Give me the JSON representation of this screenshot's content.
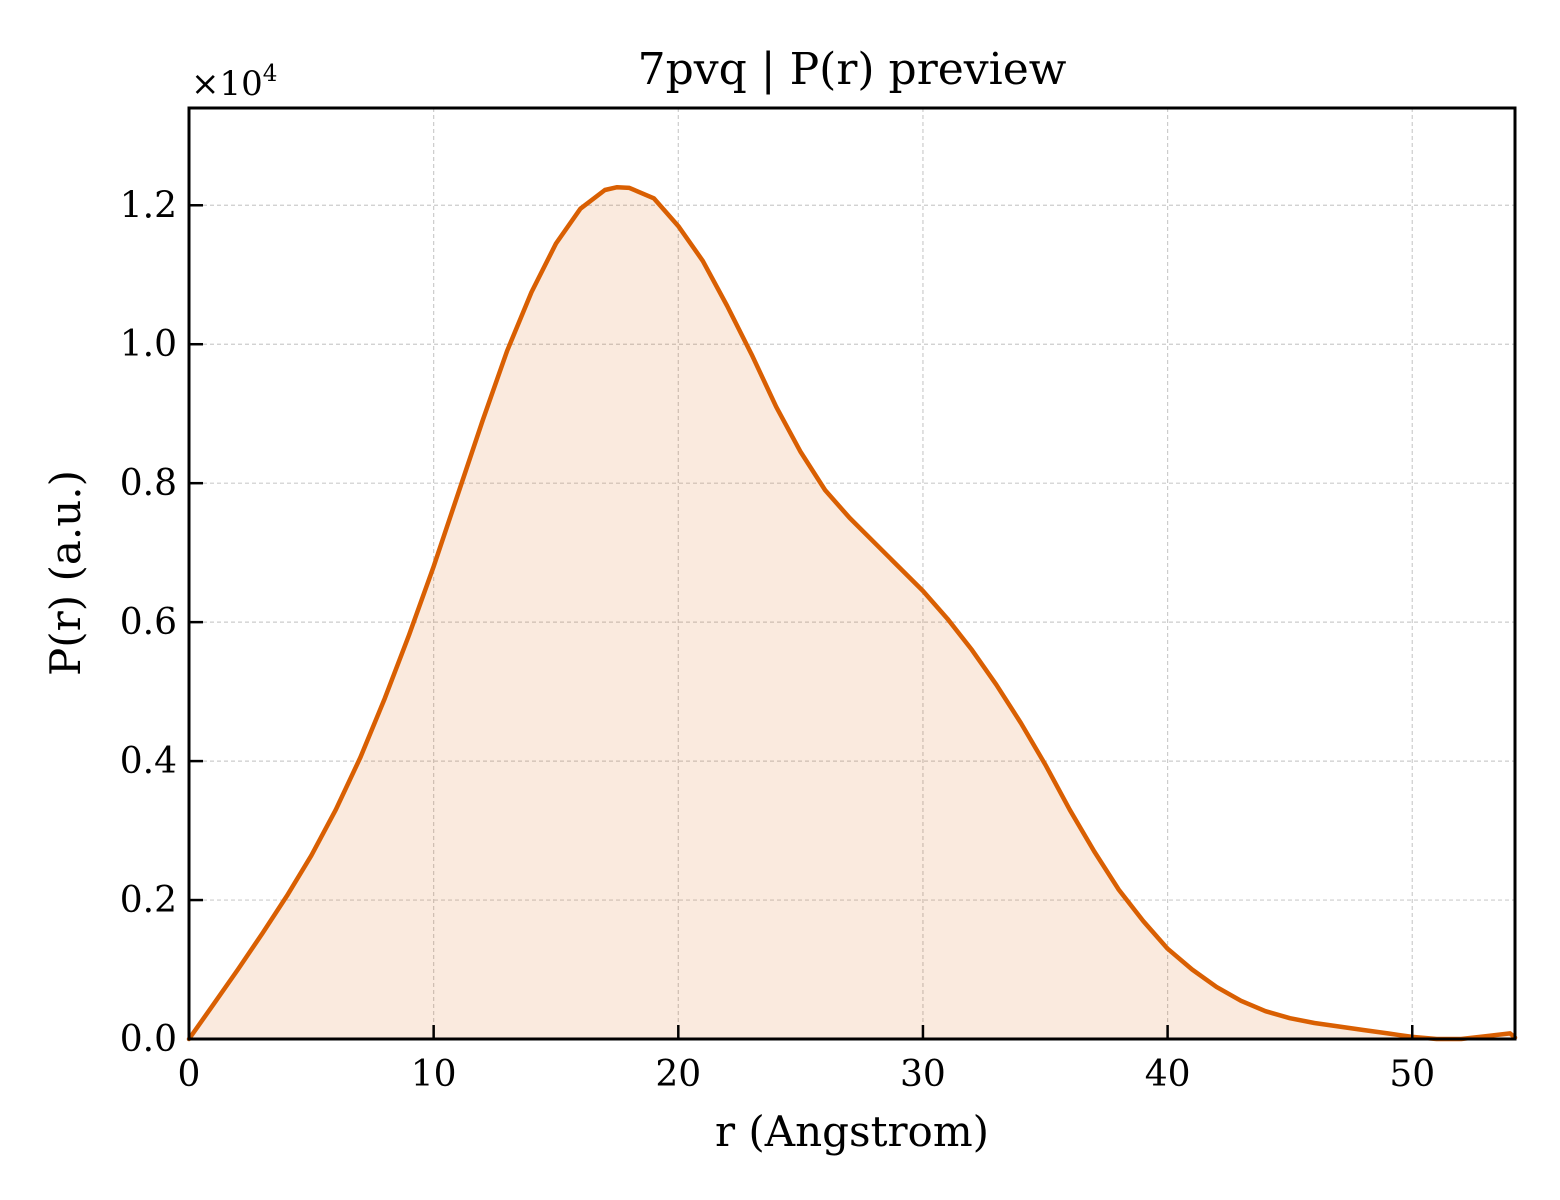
{
  "chart_data": {
    "type": "area",
    "title": "7pvq | P(r) preview",
    "xlabel": "r (Angstrom)",
    "ylabel": "P(r) (a.u.)",
    "y_multiplier_label": "×10",
    "y_multiplier_exponent": "4",
    "xlim": [
      0,
      54.2
    ],
    "ylim": [
      0,
      1.34
    ],
    "grid": true,
    "tick_direction": "in",
    "x_ticks": [
      {
        "value": 0,
        "label": "0"
      },
      {
        "value": 10,
        "label": "10"
      },
      {
        "value": 20,
        "label": "20"
      },
      {
        "value": 30,
        "label": "30"
      },
      {
        "value": 40,
        "label": "40"
      },
      {
        "value": 50,
        "label": "50"
      }
    ],
    "y_ticks": [
      {
        "value": 0.0,
        "label": "0.0"
      },
      {
        "value": 0.2,
        "label": "0.2"
      },
      {
        "value": 0.4,
        "label": "0.4"
      },
      {
        "value": 0.6,
        "label": "0.6"
      },
      {
        "value": 0.8,
        "label": "0.8"
      },
      {
        "value": 1.0,
        "label": "1.0"
      },
      {
        "value": 1.2,
        "label": "1.2"
      }
    ],
    "series": [
      {
        "color": "#d95f02",
        "fill_color": "#d95f02",
        "fill_opacity": 0.13,
        "x": [
          0,
          1,
          2,
          3,
          4,
          5,
          6,
          7,
          8,
          9,
          10,
          11,
          12,
          13,
          14,
          15,
          16,
          17,
          17.5,
          18,
          19,
          20,
          21,
          22,
          23,
          24,
          25,
          26,
          27,
          28,
          29,
          30,
          31,
          32,
          33,
          34,
          35,
          36,
          37,
          38,
          39,
          40,
          41,
          42,
          43,
          44,
          45,
          46,
          47,
          48,
          49,
          50,
          51,
          52,
          53,
          54,
          54.2
        ],
        "y": [
          0.0,
          0.05,
          0.1,
          0.152,
          0.206,
          0.264,
          0.33,
          0.405,
          0.49,
          0.582,
          0.68,
          0.785,
          0.89,
          0.99,
          1.075,
          1.145,
          1.195,
          1.222,
          1.226,
          1.225,
          1.21,
          1.17,
          1.12,
          1.055,
          0.985,
          0.91,
          0.845,
          0.79,
          0.75,
          0.715,
          0.68,
          0.645,
          0.605,
          0.56,
          0.51,
          0.455,
          0.395,
          0.33,
          0.27,
          0.215,
          0.17,
          0.13,
          0.1,
          0.075,
          0.055,
          0.04,
          0.03,
          0.023,
          0.018,
          0.013,
          0.008,
          0.003,
          0.0,
          0.0,
          0.004,
          0.008,
          0.002
        ]
      }
    ]
  }
}
